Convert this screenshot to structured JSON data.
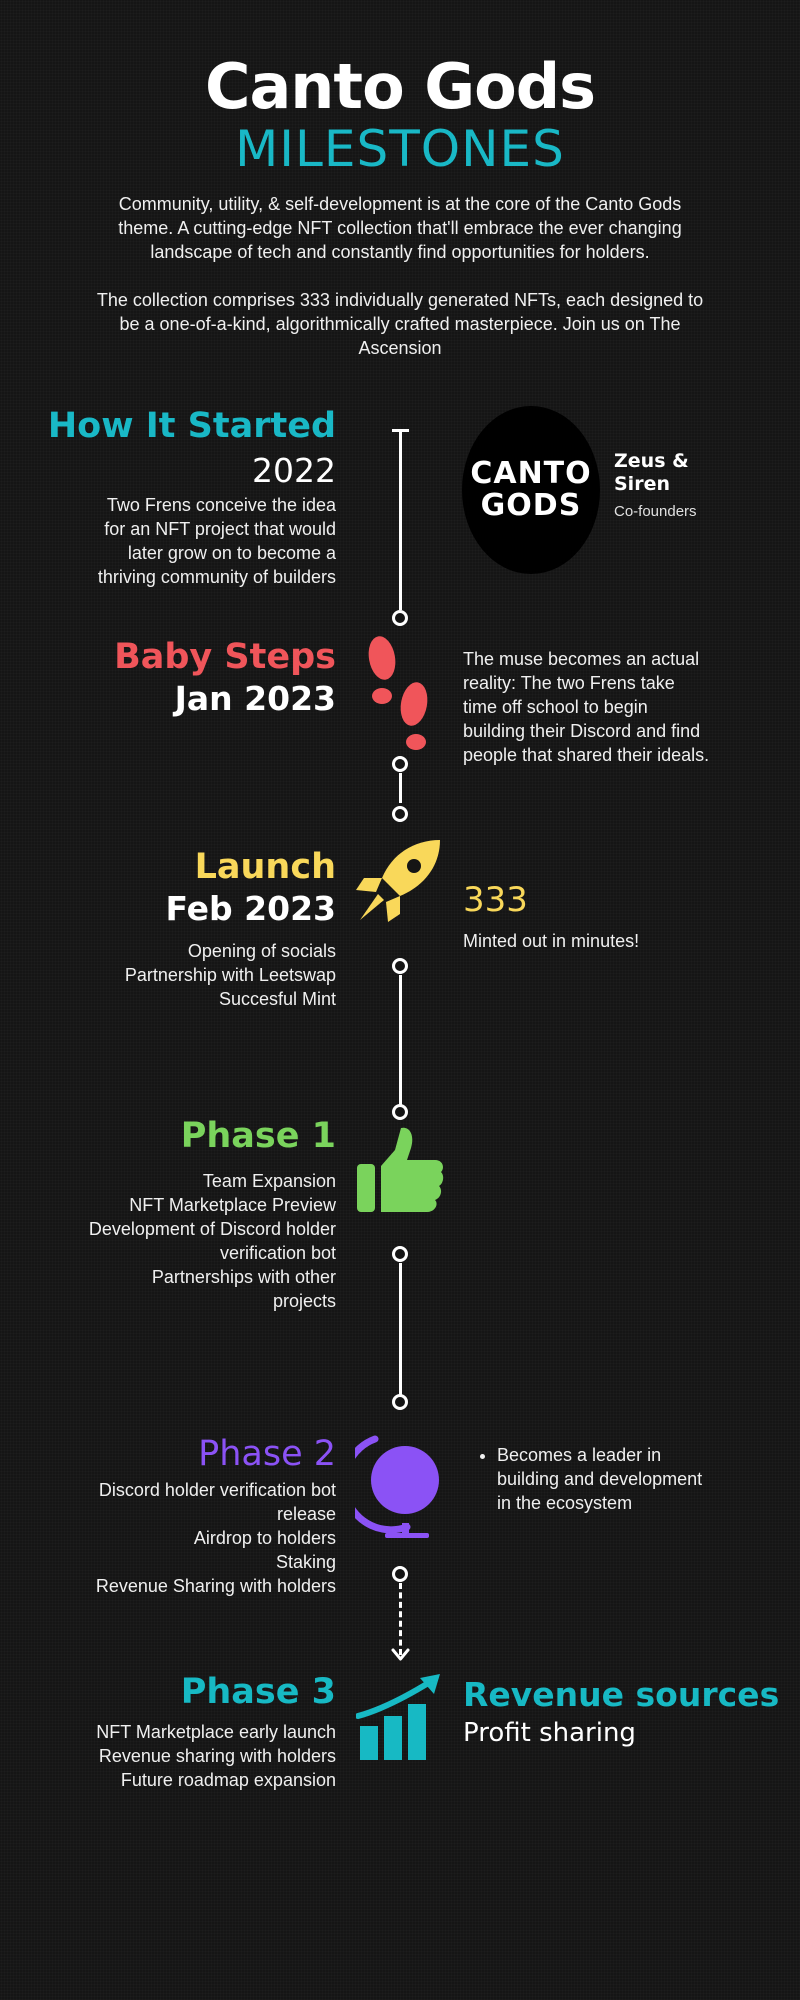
{
  "header": {
    "title": "Canto Gods",
    "subtitle": "MILESTONES",
    "intro_p1": "Community, utility, & self-development is at the core of the Canto Gods theme. A cutting-edge NFT collection that'll embrace the ever changing landscape of tech and constantly find opportunities for holders.",
    "intro_p2": "The collection comprises 333 individually generated NFTs, each designed to be a one-of-a-kind, algorithmically crafted masterpiece. Join us on The Ascension"
  },
  "milestones": [
    {
      "heading": "How It Started",
      "date": "2022",
      "lines": [
        "Two Frens conceive the idea",
        "for an NFT project that would",
        "later grow on to become a",
        "thriving community of builders"
      ],
      "logo_line1": "CANTO",
      "logo_line2": "GODS",
      "founders_name_1": "Zeus &",
      "founders_name_2": "Siren",
      "founders_role": "Co-founders"
    },
    {
      "heading": "Baby Steps",
      "date": "Jan 2023",
      "icon": "footprints-icon",
      "side_lines": [
        "The muse becomes an actual",
        "reality: The two Frens take",
        "time off school to begin",
        "building their Discord and find",
        "people that shared their ideals."
      ]
    },
    {
      "heading": "Launch",
      "date": "Feb 2023",
      "icon": "rocket-icon",
      "lines": [
        "Opening of socials",
        "Partnership with Leetswap",
        "Succesful Mint"
      ],
      "stat": "333",
      "stat_caption": "Minted out in minutes!"
    },
    {
      "heading": "Phase 1",
      "icon": "thumbs-up-icon",
      "lines": [
        "Team Expansion",
        "NFT Marketplace Preview",
        "Development of Discord holder",
        "verification bot",
        "Partnerships with other",
        "projects"
      ]
    },
    {
      "heading": "Phase 2",
      "icon": "globe-icon",
      "lines": [
        "Discord holder verification bot",
        "release",
        "Airdrop to holders",
        "Staking",
        "Revenue Sharing with holders"
      ],
      "bullet_lines": [
        "Becomes a leader in",
        "building and development",
        "in the ecosystem"
      ]
    },
    {
      "heading": "Phase 3",
      "icon": "growth-chart-icon",
      "lines": [
        "NFT Marketplace early launch",
        "Revenue sharing with holders",
        "Future roadmap expansion"
      ],
      "side_title": "Revenue sources",
      "side_sub": "Profit sharing"
    }
  ],
  "colors": {
    "cyan": "#19b8c6",
    "red": "#f0555a",
    "yellow": "#f9d85a",
    "green": "#7ad35c",
    "purple": "#8b52f5",
    "teal": "#17b9c4"
  }
}
